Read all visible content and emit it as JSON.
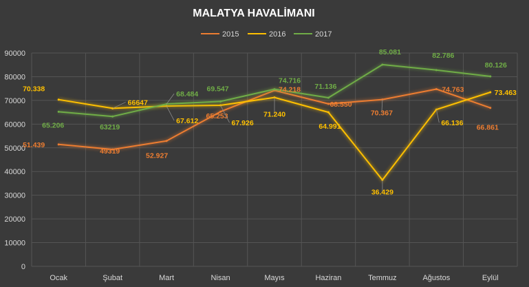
{
  "chart_data": {
    "type": "line",
    "title": "MALATYA HAVALİMANI",
    "xlabel": "",
    "ylabel": "",
    "categories": [
      "Ocak",
      "Şubat",
      "Mart",
      "Nisan",
      "Mayıs",
      "Haziran",
      "Temmuz",
      "Ağustos",
      "Eylül"
    ],
    "ylim": [
      0,
      90000
    ],
    "yticks": [
      0,
      10000,
      20000,
      30000,
      40000,
      50000,
      60000,
      70000,
      80000,
      90000
    ],
    "grid": true,
    "legend_position": "top",
    "series": [
      {
        "name": "2015",
        "color": "#ed7d31",
        "values": [
          51439,
          49319,
          52927,
          65253,
          74218,
          68550,
          70367,
          74763,
          66861
        ],
        "labels": [
          "51.439",
          "49319",
          "52.927",
          "65.253",
          "74.218",
          "68.550",
          "70.367",
          "74.763",
          "66.861"
        ]
      },
      {
        "name": "2016",
        "color": "#ffc000",
        "values": [
          70338,
          66647,
          67612,
          67926,
          71240,
          64991,
          36429,
          66136,
          73463
        ],
        "labels": [
          "70.338",
          "66647",
          "67.612",
          "67.926",
          "71.240",
          "64.991",
          "36.429",
          "66.136",
          "73.463"
        ]
      },
      {
        "name": "2017",
        "color": "#70ad47",
        "values": [
          65206,
          63219,
          68484,
          69547,
          74716,
          71136,
          85081,
          82786,
          80126
        ],
        "labels": [
          "65.206",
          "63219",
          "68.484",
          "69.547",
          "74.716",
          "71.136",
          "85.081",
          "82.786",
          "80.126"
        ]
      }
    ]
  }
}
